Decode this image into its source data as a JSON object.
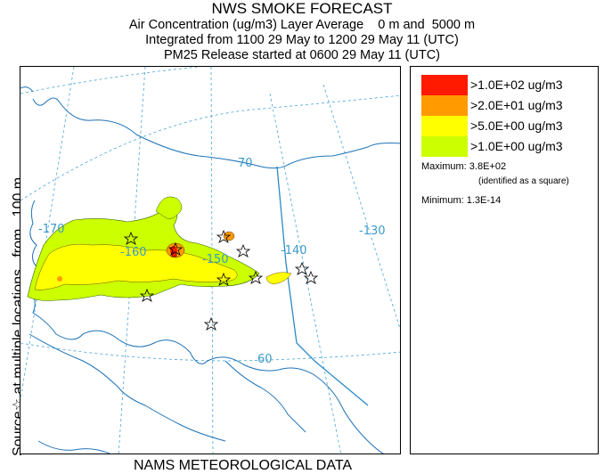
{
  "title": {
    "line1": "NWS SMOKE FORECAST",
    "line2": "Air Concentration (ug/m3) Layer Average    0 m and  5000 m",
    "line3": "Integrated from 1100 29 May to 1200 29 May 11 (UTC)",
    "line4": "PM25 Release started at 0600 29 May 11 (UTC)"
  },
  "side_label": "Source☆ at multiple locations   from   100 m",
  "bottom_label": "NAMS METEOROLOGICAL DATA",
  "legend": {
    "items": [
      {
        "label": ">1.0E+02 ug/m3",
        "color": "#ff1a00"
      },
      {
        "label": ">2.0E+01 ug/m3",
        "color": "#ff9a00"
      },
      {
        "label": ">5.0E+00 ug/m3",
        "color": "#ffff00"
      },
      {
        "label": ">1.0E+00 ug/m3",
        "color": "#ccff00"
      }
    ],
    "maximum_label": "Maximum: 3.8E+02",
    "maximum_note": "(identified as a square)",
    "minimum_label": "Minimum: 1.3E-14"
  },
  "map": {
    "grid_labels": {
      "lon_170": "-170",
      "lon_160": "-160",
      "lon_150": "-150",
      "lon_140": "-140",
      "lon_130": "-130",
      "lat_70": "70",
      "lat_60": "60"
    },
    "colors": {
      "coast": "#1e73b8",
      "graticule": "#4aa3d6",
      "border": "#2a8ac4",
      "smoke_low": "#ccff00",
      "smoke_mid": "#ffff00",
      "smoke_high": "#ff9a00",
      "smoke_max": "#ff1a00"
    },
    "source_marker": "star-icon"
  }
}
